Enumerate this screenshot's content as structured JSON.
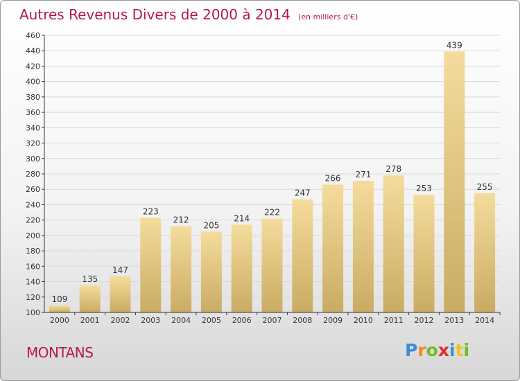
{
  "header": {
    "title": "Autres Revenus Divers de 2000 à 2014",
    "subtitle": "(en milliers d'€)"
  },
  "footer": {
    "location": "MONTANS",
    "brand": "Proxiti",
    "brand_letters": [
      {
        "ch": "P",
        "color": "#3a8fd6"
      },
      {
        "ch": "r",
        "color": "#f08a1e"
      },
      {
        "ch": "o",
        "color": "#78b82a"
      },
      {
        "ch": "x",
        "color": "#e32b2b"
      },
      {
        "ch": "i",
        "color": "#3a8fd6"
      },
      {
        "ch": "t",
        "color": "#f0c41e"
      },
      {
        "ch": "i",
        "color": "#78b82a"
      }
    ]
  },
  "colors": {
    "title": "#b5174f",
    "bar_top": "#f5dc9c",
    "bar_bottom": "#c9ac63",
    "grid": "#d9d9d9",
    "axis": "#333333"
  },
  "chart_data": {
    "type": "bar",
    "categories": [
      "2000",
      "2001",
      "2002",
      "2003",
      "2004",
      "2005",
      "2006",
      "2007",
      "2008",
      "2009",
      "2010",
      "2011",
      "2012",
      "2013",
      "2014"
    ],
    "values": [
      109,
      135,
      147,
      223,
      212,
      205,
      214,
      222,
      247,
      266,
      271,
      278,
      253,
      439,
      255
    ],
    "ylim": [
      100,
      460
    ],
    "yticks": [
      100,
      120,
      140,
      160,
      180,
      200,
      220,
      240,
      260,
      280,
      300,
      320,
      340,
      360,
      380,
      400,
      420,
      440,
      460
    ],
    "grid": true,
    "data_labels": true
  }
}
